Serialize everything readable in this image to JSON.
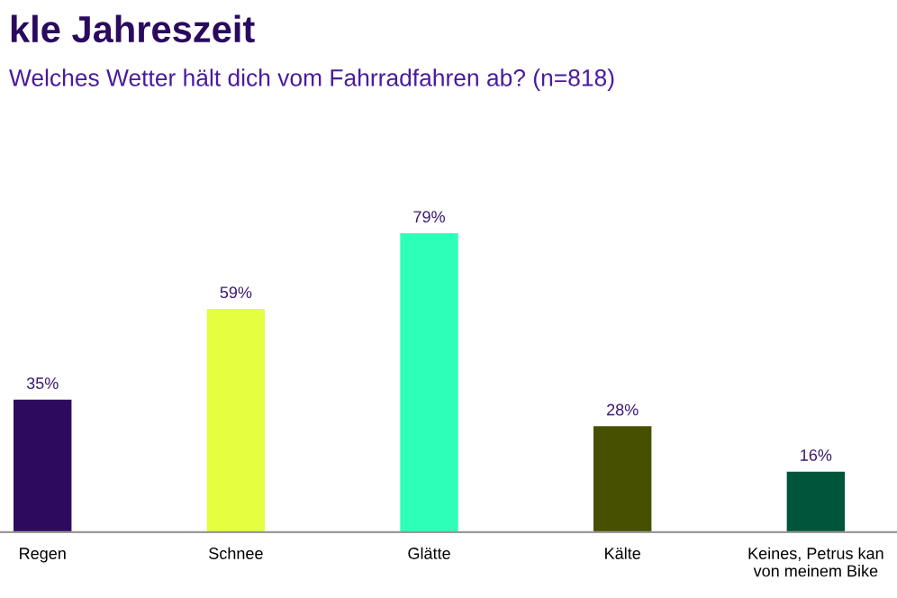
{
  "chart_data": {
    "type": "bar",
    "title": "kle Jahreszeit",
    "subtitle": "Welches Wetter hält dich vom Fahrradfahren ab? (n=818)",
    "categories": [
      "Regen",
      "Schnee",
      "Glätte",
      "Kälte",
      "Keines, Petrus kan\nvon meinem Bike"
    ],
    "values": [
      35,
      59,
      79,
      28,
      16
    ],
    "colors": [
      "#2e0a5e",
      "#e5ff40",
      "#2effb8",
      "#475000",
      "#00563a"
    ],
    "value_labels": [
      "35%",
      "59%",
      "79%",
      "28%",
      "16%"
    ],
    "grid": false,
    "legend": false
  }
}
